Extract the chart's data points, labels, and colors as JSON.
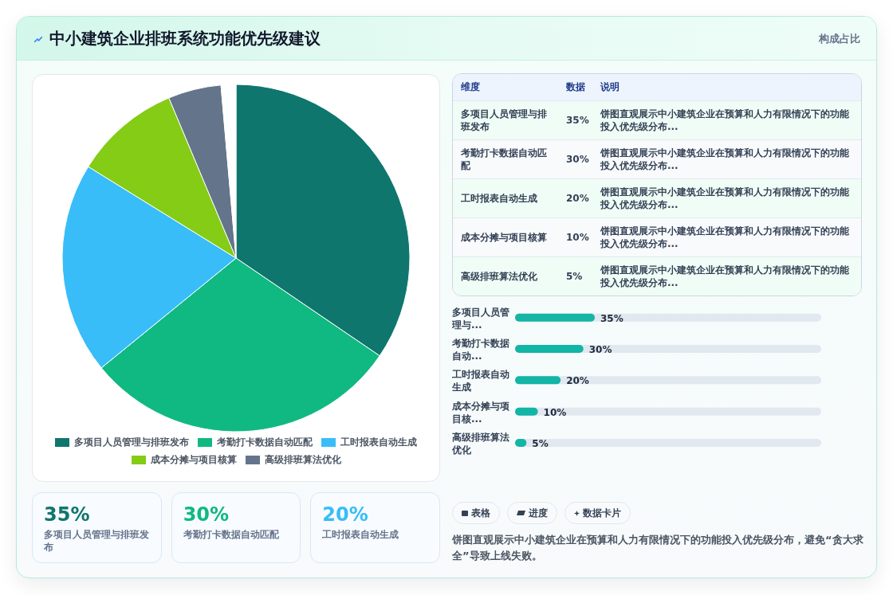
{
  "chart_data": [
    {
      "type": "pie",
      "title": "中小建筑企业排班系统功能优先级建议",
      "categories": [
        "多项目人员管理与排班发布",
        "考勤打卡数据自动匹配",
        "工时报表自动生成",
        "成本分摊与项目核算",
        "高级排班算法优化",
        null
      ],
      "values": [
        35,
        30,
        20,
        10,
        5,
        1.4
      ],
      "colors": [
        "#0f766e",
        "#10b981",
        "#38bdf8",
        "#84cc16",
        "#64748b",
        "#ffffff"
      ],
      "legend": "bottom",
      "annotations": [
        "表格",
        "进度",
        "数据卡片",
        "饼图直观展示中小建筑企业在预算和人力有限情况下的功能投入优先级分布，避免“贪大求全”导致上线失败。"
      ]
    },
    {
      "type": "other",
      "title": "构成占比",
      "categories": [
        "多项目人员管理与排班发布",
        "考勤打卡数据自动匹配",
        "工时报表自动生成",
        "成本分摊与项目核算",
        "高级排班算法优化"
      ],
      "value_labels": [
        "35%",
        "30%",
        "20%",
        "10%",
        "5%"
      ],
      "annotations": [
        "维度",
        "数据",
        "说明",
        "饼图直观展示中小建筑企业在预算和人力有限情况下的功能投入优先级分布...",
        "饼图直观展示中小建筑企业在预算和人力有限情况下的功能投入优先级分布...",
        "饼图直观展示中小建筑企业在预算和人力有限情况下的功能投入优先级分布...",
        "饼图直观展示中小建筑企业在预算和人力有限情况下的功能投入优先级分布...",
        "饼图直观展示中小建筑企业在预算和人力有限情况下的功能投入优先级分布..."
      ]
    },
    {
      "type": "bar",
      "orientation": "horizontal",
      "categories": [
        "多项目人员管理与...",
        "考勤打卡数据自动...",
        "工时报表自动生成",
        "成本分摊与项目核...",
        "高级排班算法优化"
      ],
      "values": [
        35,
        30,
        20,
        10,
        5
      ],
      "value_labels": [
        "35%",
        "30%",
        "20%",
        "10%",
        "5%"
      ],
      "color": "#12b5a6"
    },
    {
      "type": "other",
      "categories": [
        "多项目人员管理与排班发布",
        "考勤打卡数据自动匹配",
        "工时报表自动生成"
      ],
      "value_labels": [
        "35%",
        "30%",
        "20%"
      ]
    }
  ]
}
